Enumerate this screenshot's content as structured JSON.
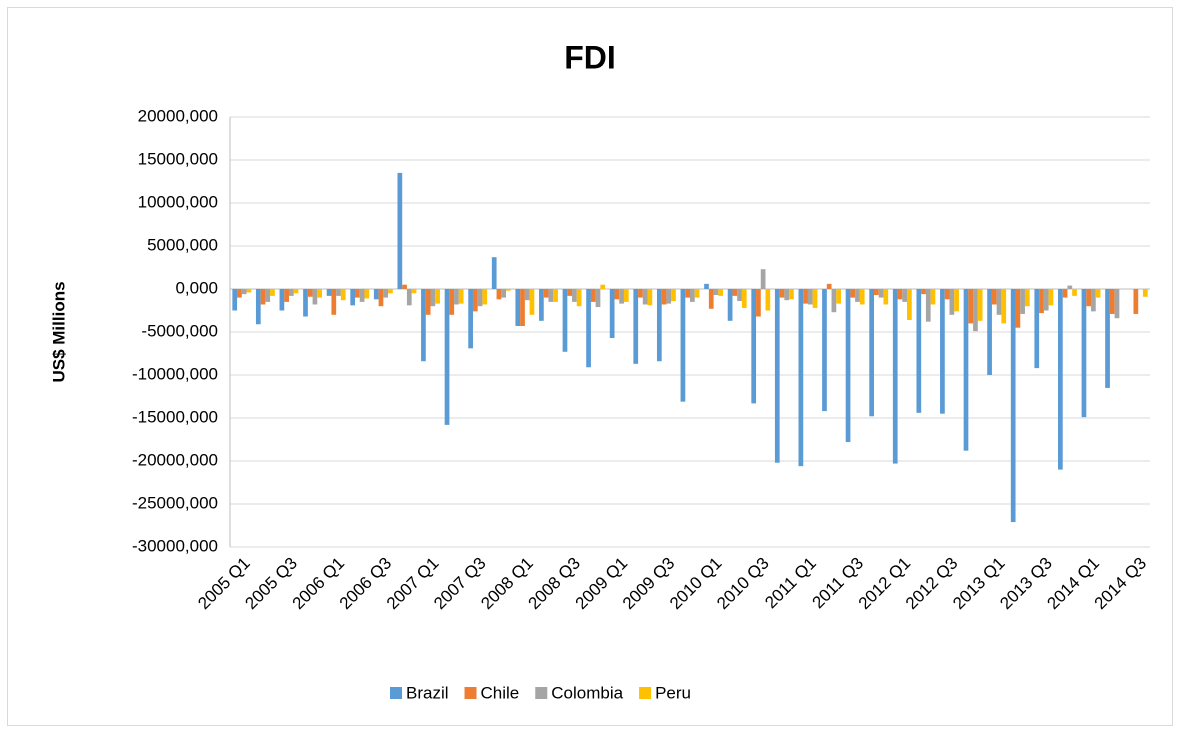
{
  "chart_data": {
    "type": "bar",
    "title": "FDI",
    "y_label": "US$ Millions",
    "categories": [
      "2005 Q1",
      null,
      "2005 Q3",
      null,
      "2006 Q1",
      null,
      "2006 Q3",
      null,
      "2007 Q1",
      null,
      "2007 Q3",
      null,
      "2008 Q1",
      null,
      "2008 Q3",
      null,
      "2009 Q1",
      null,
      "2009 Q3",
      null,
      "2010 Q1",
      null,
      "2010 Q3",
      null,
      "2011 Q1",
      null,
      "2011 Q3",
      null,
      "2012 Q1",
      null,
      "2012 Q3",
      null,
      "2013 Q1",
      null,
      "2013 Q3",
      null,
      "2014 Q1",
      null,
      "2014 Q3"
    ],
    "series": [
      {
        "name": "Brazil",
        "color": "#5b9bd5",
        "values": [
          -2500,
          -4100,
          -2500,
          -3200,
          -800,
          -1900,
          -1200,
          13500,
          -8400,
          -15800,
          -6900,
          3700,
          -4300,
          -3700,
          -7300,
          -9100,
          -5700,
          -8700,
          -8400,
          -13100,
          600,
          -3700,
          -13300,
          -20200,
          -20600,
          -14200,
          -17800,
          -14800,
          -20300,
          -14400,
          -14500,
          -18800,
          -10000,
          -27100,
          -9200,
          -21000,
          -14900,
          -11500,
          null
        ]
      },
      {
        "name": "Chile",
        "color": "#ed7d31",
        "values": [
          -1000,
          -1800,
          -1500,
          -900,
          -3000,
          -1000,
          -2000,
          500,
          -3000,
          -3000,
          -2600,
          -1200,
          -4300,
          -1000,
          -800,
          -1500,
          -1200,
          -1000,
          -1800,
          -1000,
          -2300,
          -800,
          -3200,
          -1000,
          -1700,
          600,
          -1000,
          -700,
          -1200,
          -600,
          -1200,
          -4000,
          -1800,
          -4500,
          -2800,
          -1000,
          -2000,
          -2900,
          -2900
        ]
      },
      {
        "name": "Colombia",
        "color": "#a5a5a5",
        "values": [
          -600,
          -1500,
          -800,
          -1800,
          -800,
          -1500,
          -1000,
          -1900,
          -2000,
          -1800,
          -2000,
          -1000,
          -1300,
          -1500,
          -1500,
          -2100,
          -1700,
          -1800,
          -1700,
          -1500,
          -700,
          -1400,
          2300,
          -1300,
          -1800,
          -2700,
          -1500,
          -1000,
          -1500,
          -3800,
          -3000,
          -4900,
          -3000,
          -2900,
          -2500,
          400,
          -2600,
          -3400,
          null
        ]
      },
      {
        "name": "Peru",
        "color": "#ffc000",
        "values": [
          -400,
          -800,
          -500,
          -1000,
          -1300,
          -1100,
          -500,
          -500,
          -1700,
          -1700,
          -1800,
          -200,
          -3000,
          -1500,
          -2000,
          500,
          -1500,
          -1900,
          -1400,
          -1000,
          -800,
          -2200,
          -2500,
          -1200,
          -2200,
          -1700,
          -1800,
          -1800,
          -3600,
          -1800,
          -2600,
          -3700,
          -4000,
          -2000,
          -1900,
          -800,
          -1000,
          null,
          -900
        ]
      }
    ],
    "ylim": [
      -30000,
      20000
    ],
    "yticks": [
      {
        "value": -30000,
        "label": "-30000,000"
      },
      {
        "value": -25000,
        "label": "-25000,000"
      },
      {
        "value": -20000,
        "label": "-20000,000"
      },
      {
        "value": -15000,
        "label": "-15000,000"
      },
      {
        "value": -10000,
        "label": "-10000,000"
      },
      {
        "value": -5000,
        "label": "-5000,000"
      },
      {
        "value": 0,
        "label": "0,000"
      },
      {
        "value": 5000,
        "label": "5000,000"
      },
      {
        "value": 10000,
        "label": "10000,000"
      },
      {
        "value": 15000,
        "label": "15000,000"
      },
      {
        "value": 20000,
        "label": "20000,000"
      }
    ],
    "grid": true,
    "legend": "bottom"
  }
}
